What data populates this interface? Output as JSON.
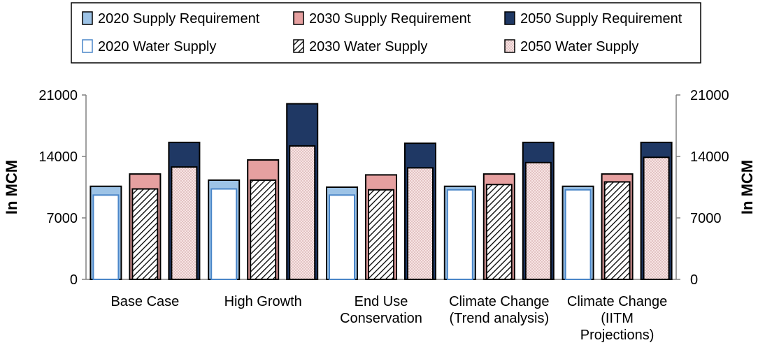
{
  "chart_data": {
    "type": "bar",
    "title": "",
    "xlabel": "",
    "ylabel": "In MCM",
    "ylabel_right": "In MCM",
    "ylim": [
      0,
      21000
    ],
    "yticks": [
      "0",
      "7000",
      "14000",
      "21000"
    ],
    "categories": [
      [
        "Base Case"
      ],
      [
        "High Growth"
      ],
      [
        "End Use",
        "Conservation"
      ],
      [
        "Climate Change",
        "(Trend analysis)"
      ],
      [
        "Climate Change",
        "(IITM",
        "Projections)"
      ]
    ],
    "legend": [
      [
        "2020 Supply Requirement",
        "2030 Supply Requirement",
        "2050 Supply Requirement"
      ],
      [
        "2020 Water Supply",
        "2030 Water Supply",
        "2050 Water Supply"
      ]
    ],
    "series": [
      {
        "name": "2020 Supply Requirement",
        "values": [
          10600,
          11300,
          10500,
          10600,
          10600
        ]
      },
      {
        "name": "2030 Supply Requirement",
        "values": [
          12000,
          13600,
          11900,
          12000,
          12000
        ]
      },
      {
        "name": "2050 Supply Requirement",
        "values": [
          15600,
          20000,
          15500,
          15600,
          15600
        ]
      },
      {
        "name": "2020 Water Supply",
        "values": [
          9600,
          10300,
          9600,
          10200,
          10200
        ]
      },
      {
        "name": "2030 Water Supply",
        "values": [
          10300,
          11300,
          10200,
          10800,
          11100
        ]
      },
      {
        "name": "2050 Water Supply",
        "values": [
          12800,
          15200,
          12700,
          13300,
          13900
        ]
      }
    ],
    "colors": {
      "req2020": "#9dc3e6",
      "req2030": "#e6a0a0",
      "req2050": "#1f3864",
      "sup2020_fill": "#ffffff",
      "sup2020_stroke": "#4a86c8",
      "sup2030_fill": "#ffffff",
      "sup2050_fill": "#f7e4e4",
      "outline": "#000000",
      "axis": "#808080"
    }
  }
}
